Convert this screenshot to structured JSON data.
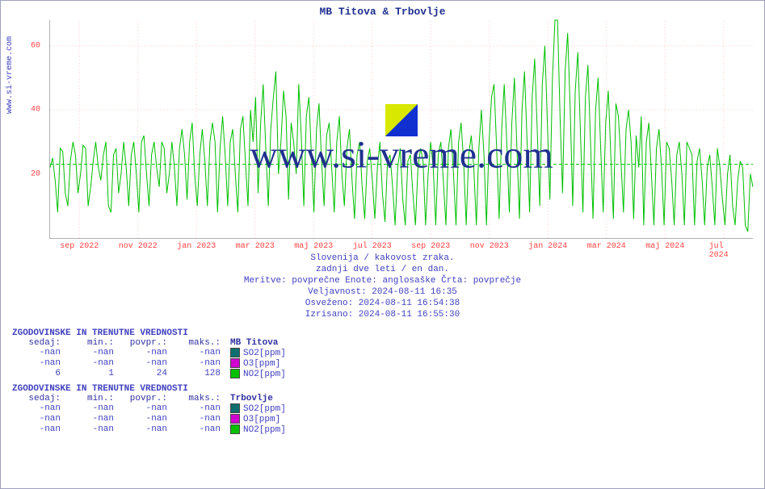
{
  "title": "MB Titova & Trbovlje",
  "ylabel_side": "www.si-vreme.com",
  "watermark": "www.si-vreme.com",
  "chart": {
    "type": "line",
    "background_color": "#ffffff",
    "grid_color": "#ffe0e0",
    "grid_dash": "2,2",
    "frame_color": "#b0b0b0",
    "tick_color": "#ff4040",
    "title_color": "#203090",
    "text_color": "#4040c0",
    "x_ticks": [
      "sep 2022",
      "nov 2022",
      "jan 2023",
      "mar 2023",
      "maj 2023",
      "jul 2023",
      "sep 2023",
      "nov 2023",
      "jan 2024",
      "mar 2024",
      "maj 2024",
      "jul 2024"
    ],
    "y_ticks": [
      20,
      40,
      60
    ],
    "ylim": [
      0,
      68
    ],
    "avg_line_y": 23,
    "avg_line_color": "#00c000",
    "series": {
      "color": "#00c000",
      "width": 1,
      "values": [
        22,
        25,
        18,
        8,
        28,
        27,
        14,
        10,
        24,
        30,
        26,
        14,
        20,
        29,
        28,
        10,
        16,
        24,
        30,
        22,
        18,
        26,
        30,
        10,
        8,
        26,
        28,
        14,
        20,
        30,
        22,
        10,
        26,
        30,
        20,
        8,
        30,
        32,
        20,
        10,
        26,
        30,
        22,
        16,
        30,
        28,
        14,
        20,
        30,
        22,
        10,
        28,
        34,
        26,
        12,
        30,
        36,
        20,
        10,
        26,
        34,
        24,
        10,
        30,
        36,
        30,
        8,
        28,
        38,
        26,
        10,
        30,
        34,
        20,
        8,
        34,
        38,
        24,
        10,
        40,
        30,
        44,
        14,
        36,
        48,
        28,
        10,
        34,
        44,
        52,
        20,
        30,
        46,
        38,
        12,
        36,
        30,
        20,
        48,
        32,
        10,
        38,
        44,
        26,
        8,
        34,
        42,
        24,
        10,
        32,
        36,
        22,
        8,
        30,
        38,
        20,
        10,
        28,
        34,
        18,
        6,
        26,
        30,
        16,
        6,
        24,
        28,
        18,
        6,
        22,
        30,
        14,
        5,
        24,
        26,
        16,
        4,
        22,
        28,
        12,
        4,
        24,
        26,
        14,
        4,
        22,
        28,
        24,
        4,
        20,
        30,
        22,
        4,
        26,
        30,
        18,
        4,
        28,
        34,
        20,
        4,
        30,
        36,
        24,
        4,
        26,
        32,
        22,
        4,
        28,
        40,
        26,
        4,
        30,
        44,
        48,
        28,
        6,
        34,
        48,
        30,
        8,
        36,
        50,
        28,
        6,
        40,
        52,
        30,
        8,
        44,
        56,
        34,
        10,
        48,
        60,
        36,
        12,
        50,
        68,
        68,
        38,
        14,
        52,
        64,
        40,
        10,
        46,
        58,
        34,
        8,
        44,
        54,
        30,
        6,
        40,
        50,
        28,
        8,
        36,
        46,
        26,
        6,
        42,
        38,
        24,
        8,
        34,
        40,
        30,
        6,
        32,
        22,
        38,
        4,
        30,
        36,
        20,
        4,
        28,
        34,
        22,
        4,
        30,
        28,
        18,
        4,
        26,
        30,
        20,
        4,
        30,
        28,
        26,
        4,
        24,
        28,
        18,
        4,
        22,
        26,
        16,
        4,
        28,
        22,
        12,
        4,
        20,
        26,
        10,
        4,
        18,
        24,
        22,
        4,
        2,
        20,
        16
      ]
    }
  },
  "desc": {
    "l1": "Slovenija / kakovost zraka.",
    "l2": "zadnji dve leti / en dan.",
    "l3": "Meritve: povprečne  Enote: anglosaške  Črta: povprečje",
    "l4": "Veljavnost: 2024-08-11 16:35",
    "l5": "Osveženo: 2024-08-11 16:54:38",
    "l6": "Izrisano: 2024-08-11 16:55:30"
  },
  "tables": {
    "heading": "ZGODOVINSKE IN TRENUTNE VREDNOSTI",
    "cols": [
      "sedaj:",
      "min.:",
      "povpr.:",
      "maks.:"
    ],
    "groups": [
      {
        "name": "MB Titova",
        "rows": [
          {
            "vals": [
              "-nan",
              "-nan",
              "-nan",
              "-nan"
            ],
            "swatch": "#0f6f6f",
            "label": "SO2[ppm]"
          },
          {
            "vals": [
              "-nan",
              "-nan",
              "-nan",
              "-nan"
            ],
            "swatch": "#d000d0",
            "label": "O3[ppm]"
          },
          {
            "vals": [
              "6",
              "1",
              "24",
              "128"
            ],
            "swatch": "#00c000",
            "label": "NO2[ppm]"
          }
        ]
      },
      {
        "name": "Trbovlje",
        "rows": [
          {
            "vals": [
              "-nan",
              "-nan",
              "-nan",
              "-nan"
            ],
            "swatch": "#0f6f6f",
            "label": "SO2[ppm]"
          },
          {
            "vals": [
              "-nan",
              "-nan",
              "-nan",
              "-nan"
            ],
            "swatch": "#d000d0",
            "label": "O3[ppm]"
          },
          {
            "vals": [
              "-nan",
              "-nan",
              "-nan",
              "-nan"
            ],
            "swatch": "#00c000",
            "label": "NO2[ppm]"
          }
        ]
      }
    ]
  }
}
